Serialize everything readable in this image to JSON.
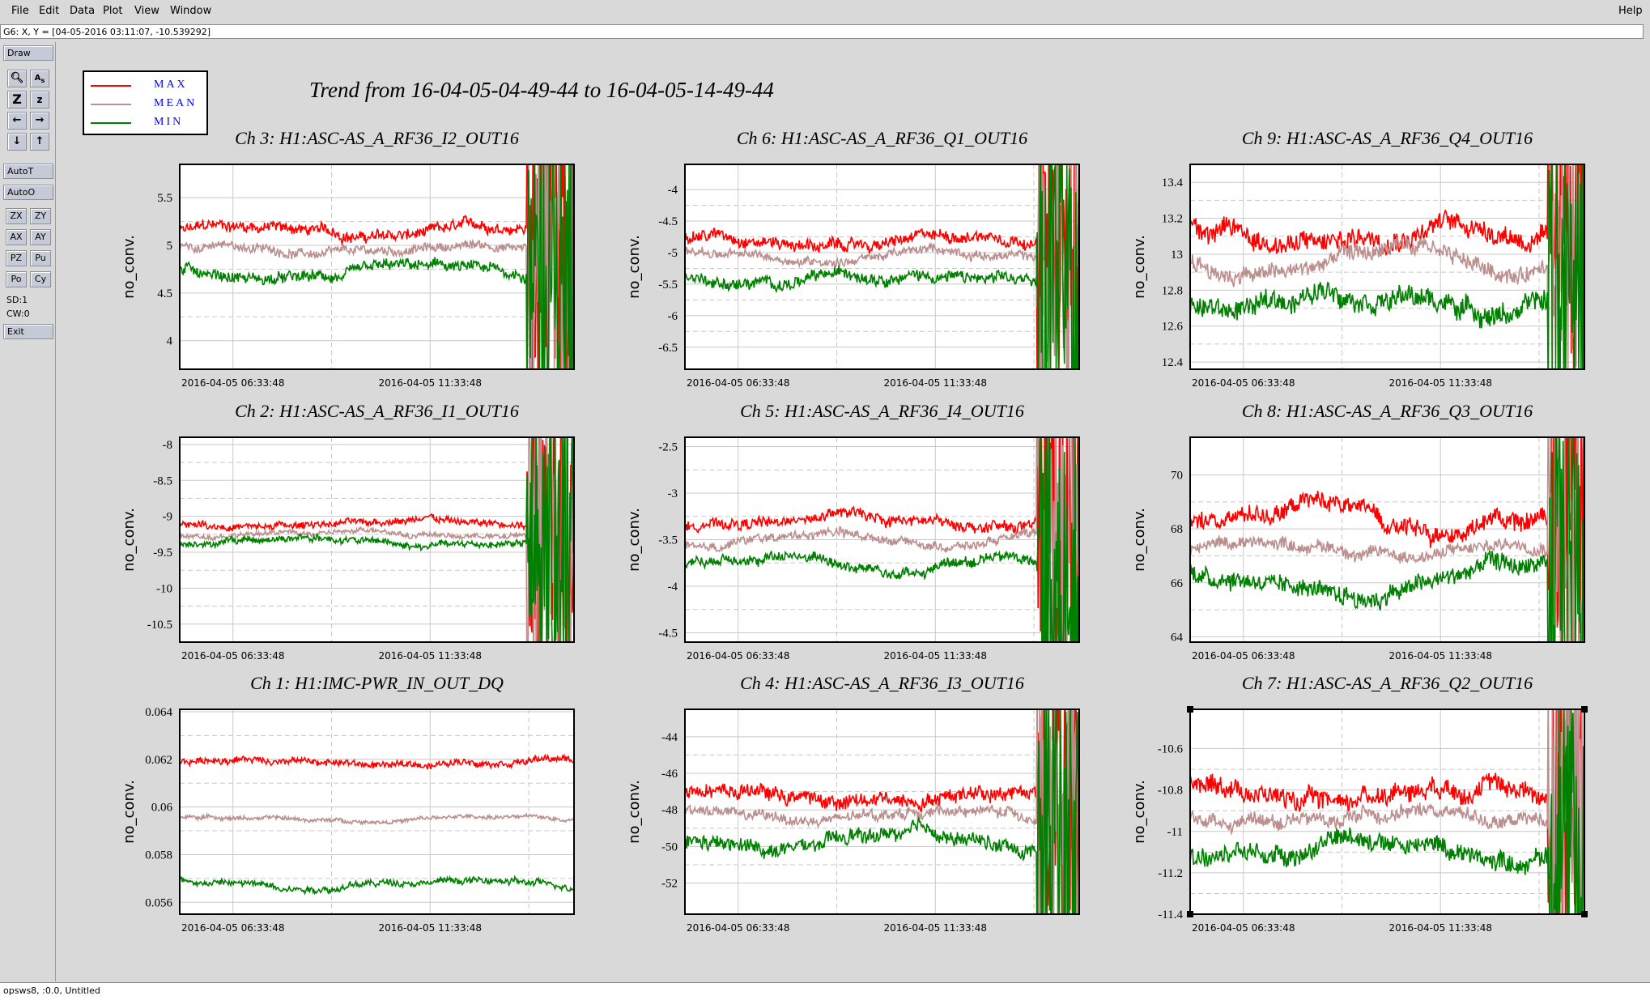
{
  "menu": {
    "file": "File",
    "edit": "Edit",
    "data": "Data",
    "plot": "Plot",
    "view": "View",
    "window": "Window",
    "help": "Help"
  },
  "coord_readout": "G6: X, Y = [04-05-2016 03:11:07, -10.539292]",
  "toolbar": {
    "draw": "Draw",
    "autot": "AutoT",
    "autoo": "AutoO",
    "exit": "Exit",
    "icons": [
      "zoom-tool-icon",
      "autoscale-icon",
      "zoom-in-icon",
      "zoom-out-icon",
      "pan-left-icon",
      "pan-right-icon",
      "pan-down-icon",
      "pan-up-icon"
    ],
    "zx": "ZX",
    "zy": "ZY",
    "ax": "AX",
    "ay": "AY",
    "pz": "PZ",
    "pu": "Pu",
    "po": "Po",
    "cy": "Cy",
    "sd": "SD:1",
    "cw": "CW:0"
  },
  "title": "Trend from 16-04-05-04-49-44 to 16-04-05-14-49-44",
  "legend": [
    {
      "label": "MAX",
      "color": "#ff0000"
    },
    {
      "label": "MEAN",
      "color": "#bc8f8f"
    },
    {
      "label": "MIN",
      "color": "#008000"
    }
  ],
  "x_tick_labels": [
    "2016-04-05 06:33:48",
    "2016-04-05 11:33:48"
  ],
  "ylabel": "no_conv.",
  "status_text": "opsws8, :0.0, Untitled",
  "chart_data": [
    {
      "type": "line",
      "title": "Ch 3: H1:ASC-AS_A_RF36_I2_OUT16",
      "ylabel": "no_conv.",
      "ylim": [
        3.7,
        5.85
      ],
      "yticks": [
        "4",
        "4.5",
        "5",
        "5.5"
      ],
      "series": [
        {
          "name": "MAX",
          "base": 5.15,
          "noise": 0.05,
          "approx_level": 5.15
        },
        {
          "name": "MEAN",
          "base": 4.95,
          "noise": 0.04,
          "approx_level": 4.95
        },
        {
          "name": "MIN",
          "base": 4.7,
          "noise": 0.05,
          "approx_level": 4.7
        }
      ]
    },
    {
      "type": "line",
      "title": "Ch 6: H1:ASC-AS_A_RF36_Q1_OUT16",
      "ylabel": "no_conv.",
      "ylim": [
        -6.85,
        -3.6
      ],
      "yticks": [
        "-4",
        "-4.5",
        "-5",
        "-5.5",
        "-6",
        "-6.5"
      ],
      "series": [
        {
          "name": "MAX",
          "base": -4.8,
          "noise": 0.08,
          "approx_level": -4.8
        },
        {
          "name": "MEAN",
          "base": -5.05,
          "noise": 0.06,
          "approx_level": -5.05
        },
        {
          "name": "MIN",
          "base": -5.4,
          "noise": 0.08,
          "approx_level": -5.4
        }
      ]
    },
    {
      "type": "line",
      "title": "Ch 9: H1:ASC-AS_A_RF36_Q4_OUT16",
      "ylabel": "no_conv.",
      "ylim": [
        12.36,
        13.5
      ],
      "yticks": [
        "12.4",
        "12.6",
        "12.8",
        "13",
        "13.2",
        "13.4"
      ],
      "series": [
        {
          "name": "MAX",
          "base": 13.12,
          "noise": 0.05,
          "approx_level": 13.12
        },
        {
          "name": "MEAN",
          "base": 12.95,
          "noise": 0.04,
          "approx_level": 12.95
        },
        {
          "name": "MIN",
          "base": 12.75,
          "noise": 0.05,
          "approx_level": 12.75
        }
      ]
    },
    {
      "type": "line",
      "title": "Ch 2: H1:ASC-AS_A_RF36_I1_OUT16",
      "ylabel": "no_conv.",
      "ylim": [
        -10.75,
        -7.9
      ],
      "yticks": [
        "-8",
        "-8.5",
        "-9",
        "-9.5",
        "-10",
        "-10.5"
      ],
      "series": [
        {
          "name": "MAX",
          "base": -9.1,
          "noise": 0.04,
          "approx_level": -9.1
        },
        {
          "name": "MEAN",
          "base": -9.25,
          "noise": 0.03,
          "approx_level": -9.25
        },
        {
          "name": "MIN",
          "base": -9.35,
          "noise": 0.04,
          "approx_level": -9.35
        }
      ]
    },
    {
      "type": "line",
      "title": "Ch 5: H1:ASC-AS_A_RF36_I4_OUT16",
      "ylabel": "no_conv.",
      "ylim": [
        -4.6,
        -2.4
      ],
      "yticks": [
        "-2.5",
        "-3",
        "-3.5",
        "-4",
        "-4.5"
      ],
      "series": [
        {
          "name": "MAX",
          "base": -3.3,
          "noise": 0.05,
          "approx_level": -3.3
        },
        {
          "name": "MEAN",
          "base": -3.5,
          "noise": 0.04,
          "approx_level": -3.5
        },
        {
          "name": "MIN",
          "base": -3.75,
          "noise": 0.05,
          "approx_level": -3.75
        }
      ]
    },
    {
      "type": "line",
      "title": "Ch 8: H1:ASC-AS_A_RF36_Q3_OUT16",
      "ylabel": "no_conv.",
      "ylim": [
        63.8,
        71.4
      ],
      "yticks": [
        "64",
        "66",
        "68",
        "70"
      ],
      "series": [
        {
          "name": "MAX",
          "base": 68.5,
          "noise": 0.3,
          "approx_level": 68.5
        },
        {
          "name": "MEAN",
          "base": 67.3,
          "noise": 0.2,
          "approx_level": 67.3
        },
        {
          "name": "MIN",
          "base": 66.1,
          "noise": 0.3,
          "approx_level": 66.1
        }
      ]
    },
    {
      "type": "line",
      "title": "Ch 1: H1:IMC-PWR_IN_OUT_DQ",
      "ylabel": "no_conv.",
      "ylim": [
        0.0555,
        0.0641
      ],
      "yticks": [
        "0.056",
        "0.058",
        "0.06",
        "0.062",
        "0.064"
      ],
      "series": [
        {
          "name": "MAX",
          "base": 0.0619,
          "noise": 0.00012,
          "approx_level": 0.0619
        },
        {
          "name": "MEAN",
          "base": 0.0595,
          "noise": 7e-05,
          "approx_level": 0.0595
        },
        {
          "name": "MIN",
          "base": 0.0568,
          "noise": 0.00012,
          "approx_level": 0.0568
        }
      ]
    },
    {
      "type": "line",
      "title": "Ch 4: H1:ASC-AS_A_RF36_I3_OUT16",
      "ylabel": "no_conv.",
      "ylim": [
        -53.7,
        -42.5
      ],
      "yticks": [
        "-44",
        "-46",
        "-48",
        "-50",
        "-52"
      ],
      "series": [
        {
          "name": "MAX",
          "base": -47.2,
          "noise": 0.35,
          "approx_level": -47.2
        },
        {
          "name": "MEAN",
          "base": -48.3,
          "noise": 0.25,
          "approx_level": -48.3
        },
        {
          "name": "MIN",
          "base": -49.8,
          "noise": 0.35,
          "approx_level": -49.8
        }
      ]
    },
    {
      "type": "line",
      "title": "Ch 7: H1:ASC-AS_A_RF36_Q2_OUT16",
      "ylabel": "no_conv.",
      "ylim": [
        -11.4,
        -10.41
      ],
      "yticks": [
        "-11.4",
        "-11.2",
        "-11",
        "-10.8",
        "-10.6"
      ],
      "series": [
        {
          "name": "MAX",
          "base": -10.8,
          "noise": 0.04,
          "approx_level": -10.8
        },
        {
          "name": "MEAN",
          "base": -10.93,
          "noise": 0.03,
          "approx_level": -10.93
        },
        {
          "name": "MIN",
          "base": -11.08,
          "noise": 0.04,
          "approx_level": -11.08
        }
      ]
    }
  ]
}
